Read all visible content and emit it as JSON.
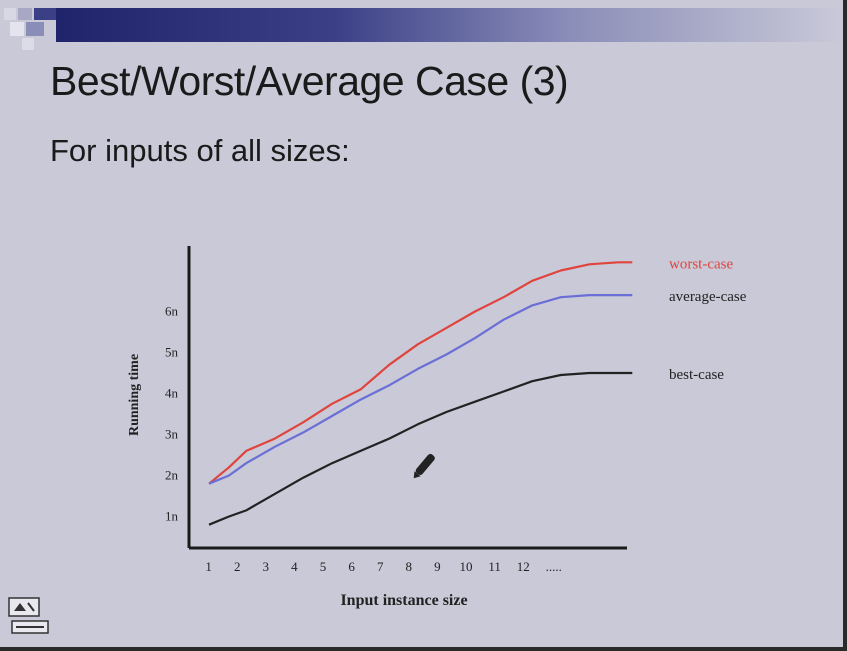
{
  "slide": {
    "title": "Best/Worst/Average Case (3)",
    "subtitle": "For inputs of all sizes:"
  },
  "chart_data": {
    "type": "line",
    "title": "",
    "xlabel": "Input instance size",
    "ylabel": "Running time",
    "x_tick_labels": [
      "1",
      "2",
      "3",
      "4",
      "5",
      "6",
      "7",
      "8",
      "9",
      "10",
      "11",
      "12",
      "....."
    ],
    "y_tick_labels": [
      "1n",
      "2n",
      "3n",
      "4n",
      "5n",
      "6n"
    ],
    "ylim": [
      0,
      7
    ],
    "grid": false,
    "legend": "series labels placed at right end of each line",
    "series": [
      {
        "name": "worst-case",
        "color": "#e0443c",
        "points": [
          [
            0.7,
            1.8
          ],
          [
            1.4,
            2.2
          ],
          [
            2,
            2.6
          ],
          [
            3,
            2.9
          ],
          [
            4,
            3.3
          ],
          [
            5,
            3.75
          ],
          [
            6,
            4.1
          ],
          [
            7,
            4.7
          ],
          [
            8,
            5.2
          ],
          [
            9,
            5.6
          ],
          [
            10,
            6.0
          ],
          [
            11,
            6.35
          ],
          [
            12,
            6.75
          ],
          [
            13,
            7.0
          ],
          [
            14,
            7.15
          ],
          [
            15,
            7.2
          ],
          [
            15.5,
            7.2
          ]
        ]
      },
      {
        "name": "average-case",
        "color": "#6a6fd6",
        "points": [
          [
            0.7,
            1.8
          ],
          [
            1.4,
            2.0
          ],
          [
            2,
            2.3
          ],
          [
            3,
            2.7
          ],
          [
            4,
            3.05
          ],
          [
            5,
            3.45
          ],
          [
            6,
            3.85
          ],
          [
            7,
            4.2
          ],
          [
            8,
            4.6
          ],
          [
            9,
            4.95
          ],
          [
            10,
            5.35
          ],
          [
            11,
            5.8
          ],
          [
            12,
            6.15
          ],
          [
            13,
            6.35
          ],
          [
            14,
            6.4
          ],
          [
            15,
            6.4
          ],
          [
            15.5,
            6.4
          ]
        ]
      },
      {
        "name": "best-case",
        "color": "#222222",
        "points": [
          [
            0.7,
            0.8
          ],
          [
            1.4,
            1.0
          ],
          [
            2,
            1.15
          ],
          [
            3,
            1.55
          ],
          [
            4,
            1.95
          ],
          [
            5,
            2.3
          ],
          [
            6,
            2.6
          ],
          [
            7,
            2.9
          ],
          [
            8,
            3.25
          ],
          [
            9,
            3.55
          ],
          [
            10,
            3.8
          ],
          [
            11,
            4.05
          ],
          [
            12,
            4.3
          ],
          [
            13,
            4.45
          ],
          [
            14,
            4.5
          ],
          [
            15,
            4.5
          ],
          [
            15.5,
            4.5
          ]
        ]
      }
    ]
  },
  "colors": {
    "slide_bg": "#c9c9d8",
    "title_bar": "#20246a",
    "axis": "#1a1a1a"
  },
  "icons": {
    "pointer": "pen-cursor-icon",
    "nav": "slide-nav-icon"
  }
}
